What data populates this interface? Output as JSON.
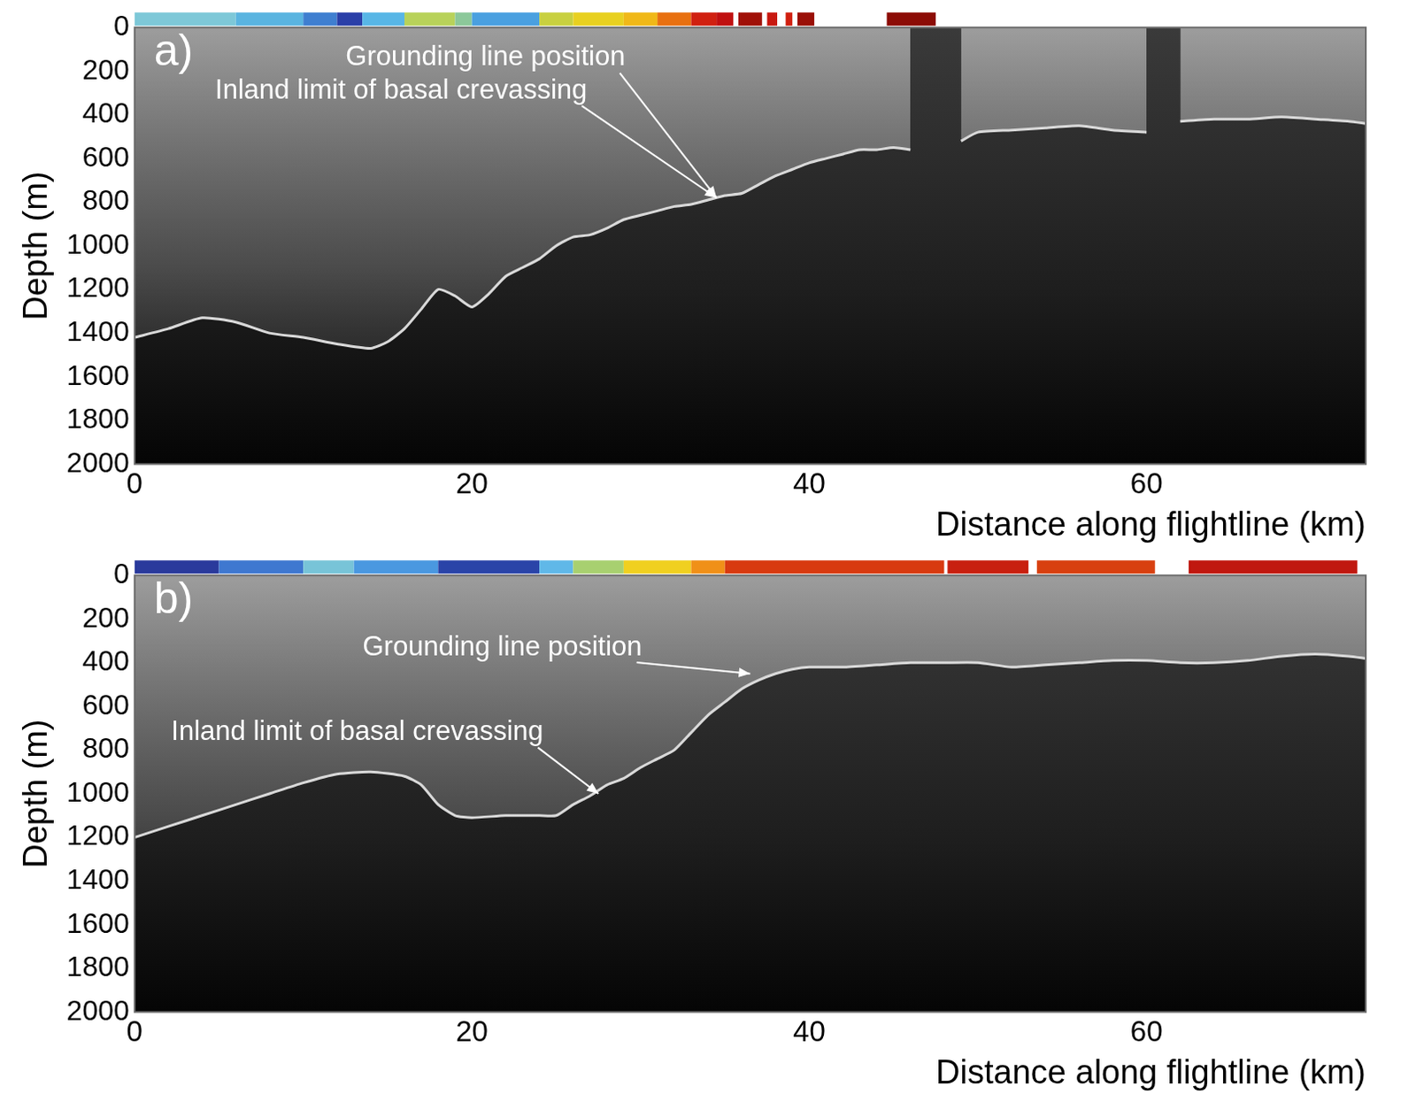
{
  "chart_data": [
    {
      "type": "line",
      "panel_label": "a)",
      "x_label": "Distance along flightline (km)",
      "y_label": "Depth (m)",
      "xlim": [
        0,
        73
      ],
      "xticks": [
        0,
        20,
        40,
        60
      ],
      "ylim": [
        0,
        2000
      ],
      "yticks": [
        0,
        200,
        400,
        600,
        800,
        1000,
        1200,
        1400,
        1600,
        1800,
        2000
      ],
      "grid": true,
      "color": "#d9d9d9",
      "x": [
        0,
        2,
        4,
        6,
        8,
        10,
        12,
        14,
        15,
        16,
        17,
        18,
        19,
        20,
        21,
        22,
        23,
        24,
        25,
        26,
        27,
        28,
        29,
        30,
        31,
        32,
        33,
        34,
        35,
        36,
        37,
        38,
        39,
        40,
        41,
        42,
        43,
        44,
        45,
        46,
        47,
        48,
        49,
        50,
        52,
        54,
        56,
        58,
        60,
        61,
        62,
        64,
        66,
        68,
        70,
        72,
        73
      ],
      "values": [
        1420,
        1380,
        1330,
        1350,
        1400,
        1420,
        1450,
        1470,
        1440,
        1380,
        1290,
        1200,
        1230,
        1280,
        1220,
        1140,
        1100,
        1060,
        1000,
        960,
        950,
        920,
        880,
        860,
        840,
        820,
        810,
        790,
        770,
        760,
        720,
        680,
        650,
        620,
        600,
        580,
        560,
        560,
        550,
        560,
        null,
        null,
        520,
        480,
        470,
        460,
        450,
        470,
        480,
        null,
        430,
        420,
        420,
        410,
        420,
        430,
        440
      ],
      "annotations": [
        {
          "text": "Grounding line position",
          "x": 34.5,
          "y": 780,
          "text_x": 20.8,
          "text_y": 140
        },
        {
          "text": "Inland limit of basal crevassing",
          "x": 34.5,
          "y": 780,
          "text_x": 15.8,
          "text_y": 290
        }
      ],
      "strip": [
        {
          "x0": 0,
          "x1": 6,
          "color": "#7ec8d8"
        },
        {
          "x0": 6,
          "x1": 10,
          "color": "#5ab4e0"
        },
        {
          "x0": 10,
          "x1": 12,
          "color": "#3f7fd0"
        },
        {
          "x0": 12,
          "x1": 13.5,
          "color": "#2a3fa8"
        },
        {
          "x0": 13.5,
          "x1": 16,
          "color": "#58b6e6"
        },
        {
          "x0": 16,
          "x1": 19,
          "color": "#b8d25a"
        },
        {
          "x0": 19,
          "x1": 20,
          "color": "#8cc89a"
        },
        {
          "x0": 20,
          "x1": 24,
          "color": "#4aa0e0"
        },
        {
          "x0": 24,
          "x1": 26,
          "color": "#c8d040"
        },
        {
          "x0": 26,
          "x1": 29,
          "color": "#e8d020"
        },
        {
          "x0": 29,
          "x1": 31,
          "color": "#f0b818"
        },
        {
          "x0": 31,
          "x1": 33,
          "color": "#e87010"
        },
        {
          "x0": 33,
          "x1": 34.5,
          "color": "#d02010"
        },
        {
          "x0": 34.5,
          "x1": 35.5,
          "color": "#c01010"
        },
        {
          "x0": 35.8,
          "x1": 37.2,
          "color": "#a01008"
        },
        {
          "x0": 37.5,
          "x1": 38.1,
          "color": "#c81810"
        },
        {
          "x0": 38.6,
          "x1": 39,
          "color": "#d02010"
        },
        {
          "x0": 39.3,
          "x1": 40.3,
          "color": "#9a1008"
        },
        {
          "x0": 44.6,
          "x1": 47.5,
          "color": "#8c0c06"
        }
      ]
    },
    {
      "type": "line",
      "panel_label": "b)",
      "x_label": "Distance along flightline (km)",
      "y_label": "Depth (m)",
      "xlim": [
        0,
        73
      ],
      "xticks": [
        0,
        20,
        40,
        60
      ],
      "ylim": [
        0,
        2000
      ],
      "yticks": [
        0,
        200,
        400,
        600,
        800,
        1000,
        1200,
        1400,
        1600,
        1800,
        2000
      ],
      "grid": true,
      "color": "#d9d9d9",
      "x": [
        0,
        2,
        4,
        6,
        8,
        10,
        12,
        14,
        16,
        17,
        18,
        19,
        20,
        22,
        24,
        25,
        26,
        27,
        28,
        29,
        30,
        31,
        32,
        33,
        34,
        35,
        36,
        37,
        38,
        39,
        40,
        42,
        44,
        46,
        48,
        50,
        52,
        54,
        56,
        58,
        60,
        62,
        64,
        66,
        68,
        70,
        72,
        73
      ],
      "values": [
        1200,
        1150,
        1100,
        1050,
        1000,
        950,
        910,
        900,
        920,
        960,
        1050,
        1100,
        1110,
        1100,
        1100,
        1100,
        1050,
        1010,
        960,
        930,
        880,
        840,
        800,
        720,
        640,
        580,
        520,
        480,
        450,
        430,
        420,
        420,
        410,
        400,
        400,
        400,
        420,
        410,
        400,
        390,
        390,
        400,
        400,
        390,
        370,
        360,
        370,
        380
      ],
      "annotations": [
        {
          "text": "Grounding line position",
          "x": 36.5,
          "y": 450,
          "text_x": 21.8,
          "text_y": 330
        },
        {
          "text": "Inland limit of basal crevassing",
          "x": 27.5,
          "y": 1000,
          "text_x": 13.2,
          "text_y": 720
        }
      ],
      "strip": [
        {
          "x0": 0,
          "x1": 5,
          "color": "#2a3a9c"
        },
        {
          "x0": 5,
          "x1": 10,
          "color": "#3f78d0"
        },
        {
          "x0": 10,
          "x1": 13,
          "color": "#78c4d8"
        },
        {
          "x0": 13,
          "x1": 18,
          "color": "#4a98e0"
        },
        {
          "x0": 18,
          "x1": 24,
          "color": "#2a44a8"
        },
        {
          "x0": 24,
          "x1": 26,
          "color": "#60b8e8"
        },
        {
          "x0": 26,
          "x1": 29,
          "color": "#a8d070"
        },
        {
          "x0": 29,
          "x1": 33,
          "color": "#f0d020"
        },
        {
          "x0": 33,
          "x1": 35,
          "color": "#f09018"
        },
        {
          "x0": 35,
          "x1": 48,
          "color": "#d83a10"
        },
        {
          "x0": 48.2,
          "x1": 53,
          "color": "#c82010"
        },
        {
          "x0": 53.5,
          "x1": 60.5,
          "color": "#d84010"
        },
        {
          "x0": 62.5,
          "x1": 72.5,
          "color": "#c01810"
        }
      ]
    }
  ]
}
